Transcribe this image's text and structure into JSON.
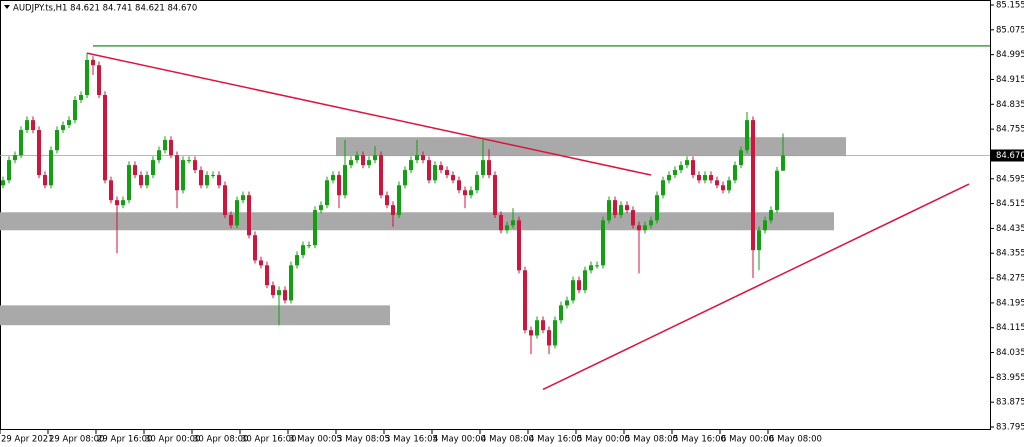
{
  "chart_data": {
    "type": "candlestick",
    "title": "AUDJPY.ts,H1  84.621 84.741 84.621 84.670",
    "categories": [
      "29 Apr 2021",
      null,
      null,
      null,
      null,
      null,
      null,
      null,
      "29 Apr 08:00",
      null,
      null,
      null,
      null,
      null,
      null,
      null,
      "29 Apr 16:00",
      null,
      null,
      null,
      null,
      null,
      null,
      null,
      "30 Apr 00:00",
      null,
      null,
      null,
      null,
      null,
      null,
      null,
      "30 Apr 08:00",
      null,
      null,
      null,
      null,
      null,
      null,
      null,
      "30 Apr 16:00",
      null,
      null,
      null,
      null,
      null,
      null,
      null,
      "3 May 00:05",
      null,
      null,
      null,
      null,
      null,
      null,
      null,
      "3 May 08:05",
      null,
      null,
      null,
      null,
      null,
      null,
      null,
      "3 May 16:05",
      null,
      null,
      null,
      null,
      null,
      null,
      null,
      "4 May 00:00",
      null,
      null,
      null,
      null,
      null,
      null,
      null,
      "4 May 08:00",
      null,
      null,
      null,
      null,
      null,
      null,
      null,
      "4 May 16:00",
      null,
      null,
      null,
      null,
      null,
      null,
      null,
      "5 May 00:00",
      null,
      null,
      null,
      null,
      null,
      null,
      null,
      "5 May 08:00",
      null,
      null,
      null,
      null,
      null,
      null,
      null,
      "5 May 16:00",
      null,
      null,
      null,
      null,
      null,
      null,
      null,
      "6 May 00:00",
      null,
      null,
      null,
      null,
      null,
      null,
      null,
      "6 May 08:00",
      null,
      null
    ],
    "open": [
      84.574,
      84.59,
      84.655,
      84.671,
      84.752,
      84.784,
      84.752,
      84.607,
      84.574,
      84.687,
      84.752,
      84.768,
      84.784,
      84.849,
      84.865,
      84.978,
      84.961,
      84.865,
      84.59,
      84.526,
      84.51,
      84.526,
      84.639,
      84.607,
      84.574,
      84.607,
      84.655,
      84.687,
      84.72,
      84.671,
      84.558,
      84.655,
      84.655,
      84.623,
      84.574,
      84.607,
      84.607,
      84.574,
      84.478,
      84.445,
      84.526,
      84.542,
      84.413,
      84.332,
      84.316,
      84.252,
      84.22,
      84.236,
      84.203,
      84.316,
      84.349,
      84.381,
      84.381,
      84.494,
      84.51,
      84.59,
      84.607,
      84.542,
      84.639,
      84.655,
      84.671,
      84.639,
      84.655,
      84.671,
      84.542,
      84.51,
      84.478,
      84.574,
      84.623,
      84.655,
      84.671,
      84.655,
      84.59,
      84.639,
      84.623,
      84.607,
      84.59,
      84.558,
      84.542,
      84.558,
      84.607,
      84.655,
      84.607,
      84.478,
      84.429,
      84.445,
      84.461,
      84.3,
      84.107,
      84.09,
      84.139,
      84.107,
      84.058,
      84.139,
      84.187,
      84.203,
      84.268,
      84.236,
      84.3,
      84.316,
      84.316,
      84.461,
      84.526,
      84.478,
      84.51,
      84.494,
      84.445,
      84.429,
      84.445,
      84.461,
      84.542,
      84.59,
      84.607,
      84.623,
      84.639,
      84.655,
      84.607,
      84.59,
      84.607,
      84.59,
      84.574,
      84.558,
      84.59,
      84.639,
      84.687,
      84.784,
      84.365,
      84.429,
      84.461,
      84.494,
      84.621
    ],
    "high": [
      84.602,
      84.667,
      84.683,
      84.764,
      84.796,
      84.796,
      84.764,
      84.619,
      84.699,
      84.764,
      84.78,
      84.796,
      84.861,
      84.877,
      85.0,
      84.99,
      84.973,
      84.877,
      84.602,
      84.538,
      84.538,
      84.651,
      84.651,
      84.619,
      84.619,
      84.667,
      84.699,
      84.732,
      84.732,
      84.683,
      84.667,
      84.667,
      84.667,
      84.635,
      84.619,
      84.619,
      84.619,
      84.586,
      84.49,
      84.538,
      84.554,
      84.554,
      84.425,
      84.344,
      84.328,
      84.264,
      84.248,
      84.248,
      84.328,
      84.361,
      84.393,
      84.393,
      84.506,
      84.522,
      84.602,
      84.619,
      84.619,
      84.72,
      84.667,
      84.683,
      84.683,
      84.667,
      84.7,
      84.683,
      84.554,
      84.522,
      84.586,
      84.635,
      84.667,
      84.72,
      84.683,
      84.667,
      84.651,
      84.651,
      84.635,
      84.619,
      84.602,
      84.57,
      84.57,
      84.619,
      84.72,
      84.69,
      84.619,
      84.49,
      84.457,
      84.5,
      84.473,
      84.312,
      84.119,
      84.151,
      84.151,
      84.119,
      84.151,
      84.199,
      84.215,
      84.28,
      84.28,
      84.312,
      84.328,
      84.328,
      84.473,
      84.538,
      84.538,
      84.522,
      84.522,
      84.506,
      84.457,
      84.457,
      84.473,
      84.554,
      84.602,
      84.619,
      84.635,
      84.651,
      84.667,
      84.667,
      84.619,
      84.619,
      84.619,
      84.602,
      84.586,
      84.602,
      84.651,
      84.699,
      84.81,
      84.796,
      84.441,
      84.473,
      84.506,
      84.633,
      84.741
    ],
    "low": [
      84.564,
      84.58,
      84.645,
      84.661,
      84.742,
      84.742,
      84.597,
      84.564,
      84.564,
      84.677,
      84.742,
      84.758,
      84.774,
      84.839,
      84.855,
      84.93,
      84.855,
      84.58,
      84.516,
      84.355,
      84.5,
      84.516,
      84.597,
      84.564,
      84.564,
      84.597,
      84.645,
      84.677,
      84.661,
      84.5,
      84.548,
      84.645,
      84.613,
      84.564,
      84.564,
      84.597,
      84.564,
      84.468,
      84.435,
      84.435,
      84.516,
      84.403,
      84.322,
      84.306,
      84.242,
      84.21,
      84.123,
      84.193,
      84.193,
      84.306,
      84.339,
      84.371,
      84.371,
      84.484,
      84.5,
      84.58,
      84.5,
      84.532,
      84.629,
      84.645,
      84.629,
      84.629,
      84.645,
      84.532,
      84.5,
      84.44,
      84.468,
      84.564,
      84.613,
      84.645,
      84.645,
      84.58,
      84.58,
      84.613,
      84.597,
      84.58,
      84.548,
      84.5,
      84.532,
      84.548,
      84.597,
      84.597,
      84.468,
      84.419,
      84.419,
      84.435,
      84.29,
      84.097,
      84.03,
      84.08,
      84.097,
      84.03,
      84.048,
      84.129,
      84.177,
      84.193,
      84.226,
      84.226,
      84.29,
      84.306,
      84.306,
      84.451,
      84.468,
      84.468,
      84.484,
      84.435,
      84.29,
      84.419,
      84.435,
      84.451,
      84.532,
      84.58,
      84.597,
      84.613,
      84.629,
      84.597,
      84.58,
      84.58,
      84.58,
      84.564,
      84.548,
      84.548,
      84.58,
      84.629,
      84.677,
      84.275,
      84.3,
      84.419,
      84.451,
      84.484,
      84.621
    ],
    "close": [
      84.59,
      84.655,
      84.671,
      84.752,
      84.784,
      84.752,
      84.607,
      84.574,
      84.687,
      84.752,
      84.768,
      84.784,
      84.849,
      84.865,
      84.978,
      84.961,
      84.865,
      84.59,
      84.526,
      84.51,
      84.526,
      84.639,
      84.607,
      84.574,
      84.607,
      84.655,
      84.687,
      84.72,
      84.671,
      84.558,
      84.655,
      84.655,
      84.623,
      84.574,
      84.607,
      84.607,
      84.574,
      84.478,
      84.445,
      84.526,
      84.542,
      84.413,
      84.332,
      84.316,
      84.252,
      84.22,
      84.236,
      84.203,
      84.316,
      84.349,
      84.381,
      84.381,
      84.494,
      84.51,
      84.59,
      84.607,
      84.542,
      84.639,
      84.655,
      84.671,
      84.639,
      84.655,
      84.671,
      84.542,
      84.51,
      84.478,
      84.574,
      84.623,
      84.655,
      84.671,
      84.655,
      84.59,
      84.639,
      84.623,
      84.607,
      84.59,
      84.558,
      84.542,
      84.558,
      84.607,
      84.655,
      84.607,
      84.478,
      84.429,
      84.445,
      84.461,
      84.3,
      84.107,
      84.09,
      84.139,
      84.107,
      84.058,
      84.139,
      84.187,
      84.203,
      84.268,
      84.236,
      84.3,
      84.316,
      84.316,
      84.461,
      84.526,
      84.478,
      84.51,
      84.494,
      84.445,
      84.429,
      84.445,
      84.461,
      84.542,
      84.59,
      84.607,
      84.623,
      84.639,
      84.655,
      84.607,
      84.59,
      84.607,
      84.59,
      84.574,
      84.558,
      84.59,
      84.639,
      84.687,
      84.784,
      84.365,
      84.429,
      84.461,
      84.494,
      84.621,
      84.67
    ],
    "up_color": "#10a010",
    "down_color": "#d0143c",
    "ylim": [
      83.795,
      85.155
    ],
    "yticks": [
      85.155,
      85.075,
      84.995,
      84.915,
      84.835,
      84.755,
      84.675,
      84.595,
      84.515,
      84.435,
      84.355,
      84.275,
      84.195,
      84.115,
      84.035,
      83.955,
      83.875,
      83.795
    ],
    "current_price": {
      "value": 84.67,
      "label": "84.670"
    },
    "hlines": [
      {
        "price": 85.023,
        "from": 15,
        "color": "#008000"
      }
    ],
    "trendlines": [
      {
        "from": [
          14,
          85.0
        ],
        "to": [
          108,
          84.607
        ],
        "color": "#dc143c"
      },
      {
        "from": [
          90,
          83.916
        ],
        "to": [
          161,
          84.578
        ],
        "color": "#dc143c"
      }
    ],
    "zones": [
      {
        "from": 56,
        "to": 140,
        "top": 84.729,
        "bottom": 84.668,
        "color": "#a9a9a9"
      },
      {
        "from": 0,
        "to": 138,
        "top": 84.487,
        "bottom": 84.429,
        "color": "#a9a9a9"
      },
      {
        "from": 0,
        "to": 64,
        "top": 84.187,
        "bottom": 84.123,
        "color": "#a9a9a9"
      }
    ]
  }
}
